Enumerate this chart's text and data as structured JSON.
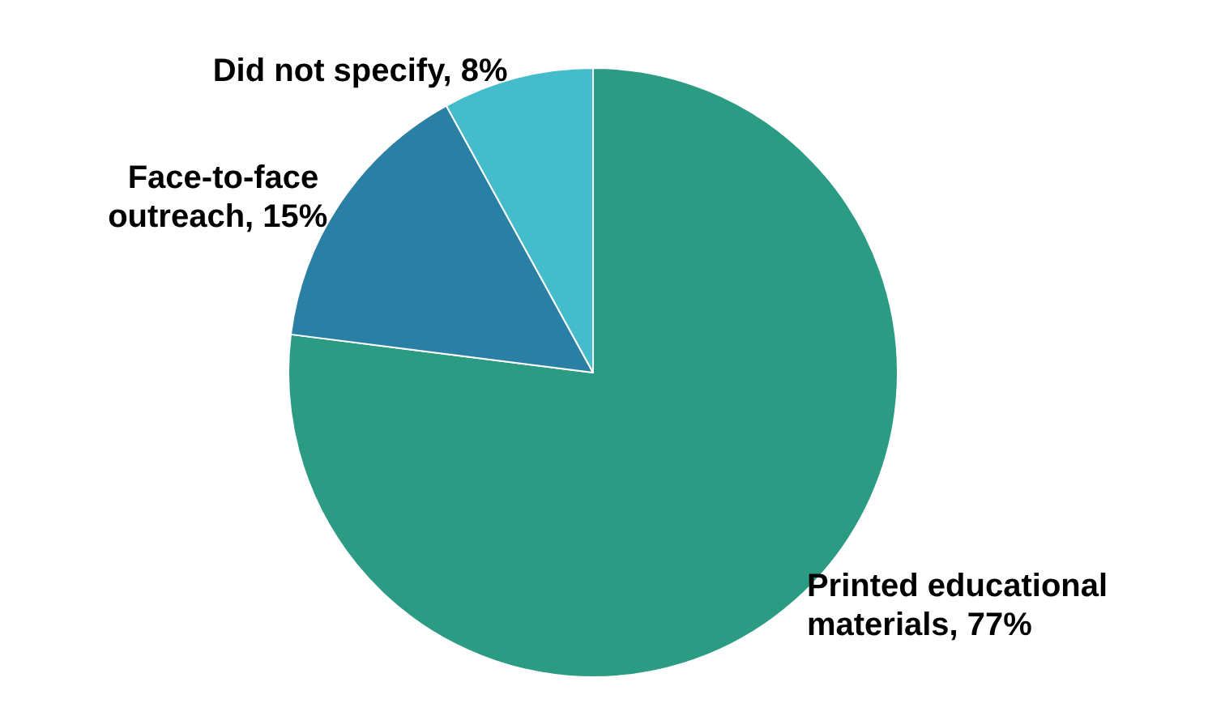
{
  "chart_data": {
    "type": "pie",
    "categories": [
      "Printed educational materials",
      "Face-to-face outreach",
      "Did not specify"
    ],
    "values": [
      77,
      15,
      8
    ],
    "value_labels": [
      "77%",
      "15%",
      "8%"
    ],
    "colors": [
      "#2b9b84",
      "#2a7fa5",
      "#45bccb"
    ]
  }
}
